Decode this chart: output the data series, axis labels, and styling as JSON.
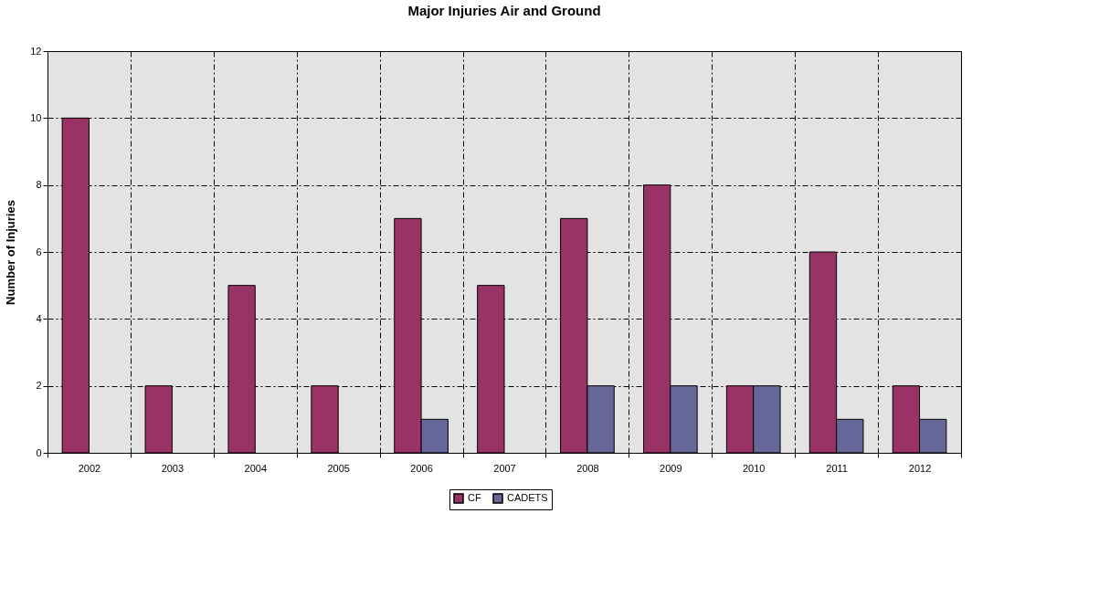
{
  "chart_data": {
    "type": "bar",
    "title": "Major Injuries Air and Ground",
    "ylabel": "Number of Injuries",
    "categories": [
      "2002",
      "2003",
      "2004",
      "2005",
      "2006",
      "2007",
      "2008",
      "2009",
      "2010",
      "2011",
      "2012"
    ],
    "series": [
      {
        "name": "CF",
        "color": "#993366",
        "values": [
          10,
          2,
          5,
          2,
          7,
          5,
          7,
          8,
          2,
          6,
          2
        ]
      },
      {
        "name": "CADETS",
        "color": "#666699",
        "values": [
          null,
          null,
          null,
          null,
          1,
          null,
          2,
          2,
          2,
          1,
          1
        ]
      }
    ],
    "ylim": [
      0,
      12
    ],
    "yticks": [
      0,
      2,
      4,
      6,
      8,
      10,
      12
    ],
    "grid": true,
    "legend": "bottom"
  }
}
